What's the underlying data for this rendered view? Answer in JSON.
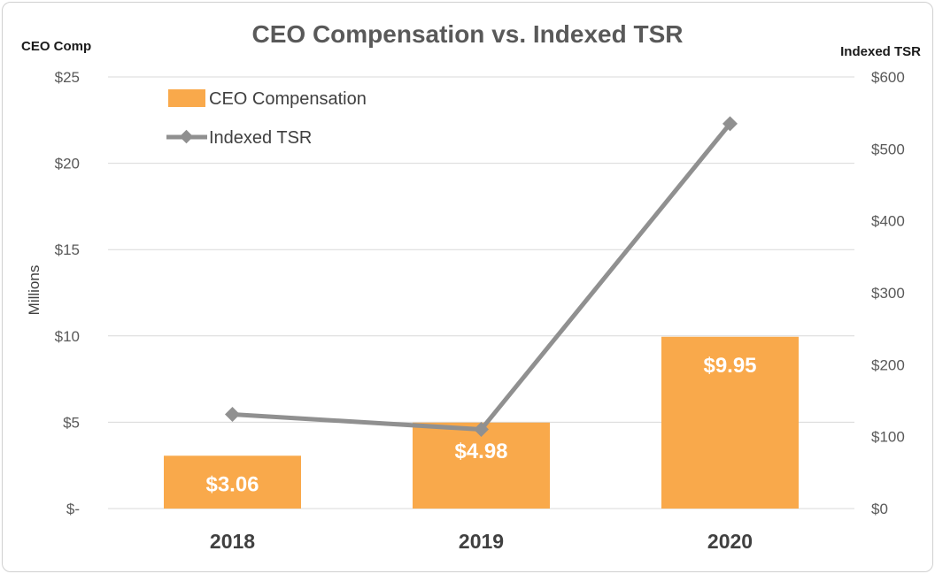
{
  "chart_data": {
    "type": "bar",
    "title": "CEO Compensation vs. Indexed TSR",
    "categories": [
      "2018",
      "2019",
      "2020"
    ],
    "series": [
      {
        "name": "CEO Compensation",
        "kind": "bar",
        "axis": "left",
        "values": [
          3.06,
          4.98,
          9.95
        ],
        "labels": [
          "$3.06",
          "$4.98",
          "$9.95"
        ],
        "color": "#F9A94B"
      },
      {
        "name": "Indexed TSR",
        "kind": "line",
        "axis": "right",
        "values": [
          131,
          110,
          535
        ],
        "color": "#909090"
      }
    ],
    "y_left": {
      "title": "CEO Comp",
      "unit_label": "Millions",
      "ylim": [
        0,
        25
      ],
      "ticks": [
        0,
        5,
        10,
        15,
        20,
        25
      ],
      "tick_labels": [
        "$-",
        "$5",
        "$10",
        "$15",
        "$20",
        "$25"
      ]
    },
    "y_right": {
      "title": "Indexed TSR",
      "ylim": [
        0,
        600
      ],
      "ticks": [
        0,
        100,
        200,
        300,
        400,
        500,
        600
      ],
      "tick_labels": [
        "$0",
        "$100",
        "$200",
        "$300",
        "$400",
        "$500",
        "$600"
      ]
    },
    "grid": true,
    "legend": "top-left"
  },
  "colors": {
    "bar": "#F9A94B",
    "line": "#909090",
    "grid": "#d9d9d9"
  }
}
